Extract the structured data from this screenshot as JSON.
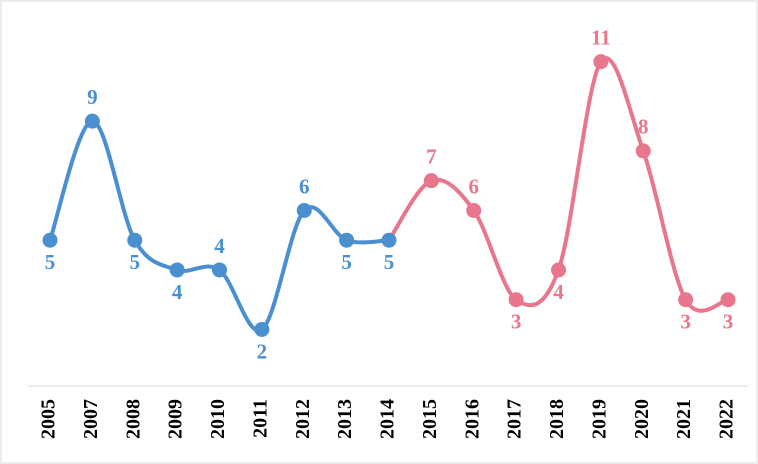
{
  "chart_data": {
    "type": "line",
    "smooth": true,
    "categories": [
      "2005",
      "2007",
      "2008",
      "2009",
      "2010",
      "2011",
      "2012",
      "2013",
      "2014",
      "2015",
      "2016",
      "2017",
      "2018",
      "2019",
      "2020",
      "2021",
      "2022"
    ],
    "series": [
      {
        "color": "#4a8fd0",
        "values": [
          5,
          9,
          5,
          4,
          4,
          2,
          6,
          5,
          5,
          null,
          null,
          null,
          null,
          null,
          null,
          null,
          null
        ]
      },
      {
        "color": "#e8768c",
        "values": [
          null,
          null,
          null,
          null,
          null,
          null,
          null,
          null,
          null,
          7,
          6,
          3,
          4,
          11,
          8,
          3,
          3
        ]
      }
    ],
    "ylim": [
      0,
      12.5
    ]
  }
}
